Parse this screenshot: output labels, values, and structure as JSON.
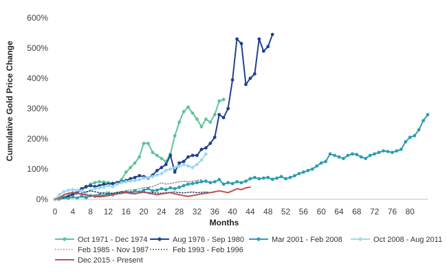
{
  "chart_data": {
    "type": "line",
    "xlabel": "Months",
    "ylabel": "Cumulative Gold Price Change",
    "xlim": [
      0,
      84
    ],
    "ylim": [
      0,
      600
    ],
    "x_ticks": [
      0,
      4,
      8,
      12,
      16,
      20,
      24,
      28,
      32,
      36,
      40,
      44,
      48,
      52,
      56,
      60,
      64,
      68,
      72,
      76,
      80
    ],
    "y_ticks": [
      0,
      100,
      200,
      300,
      400,
      500,
      600
    ],
    "y_tick_labels": [
      "0%",
      "100%",
      "200%",
      "300%",
      "400%",
      "500%",
      "600%"
    ],
    "grid": false,
    "legend_position": "bottom",
    "series": [
      {
        "name": "Oct 1971 - Dec 1974",
        "color": "#5cc49a",
        "style": "solid-markers",
        "x": [
          0,
          1,
          2,
          3,
          4,
          5,
          6,
          7,
          8,
          9,
          10,
          11,
          12,
          13,
          14,
          15,
          16,
          17,
          18,
          19,
          20,
          21,
          22,
          23,
          24,
          25,
          26,
          27,
          28,
          29,
          30,
          31,
          32,
          33,
          34,
          35,
          36,
          37,
          38
        ],
        "y": [
          0,
          3,
          8,
          12,
          15,
          22,
          30,
          40,
          50,
          55,
          58,
          57,
          55,
          53,
          55,
          65,
          90,
          105,
          120,
          140,
          185,
          185,
          155,
          145,
          135,
          125,
          150,
          210,
          255,
          290,
          305,
          285,
          265,
          240,
          265,
          255,
          280,
          325,
          330
        ]
      },
      {
        "name": "Aug 1976 - Sep 1980",
        "color": "#1f3f8f",
        "style": "solid-markers",
        "x": [
          0,
          1,
          2,
          3,
          4,
          5,
          6,
          7,
          8,
          9,
          10,
          11,
          12,
          13,
          14,
          15,
          16,
          17,
          18,
          19,
          20,
          21,
          22,
          23,
          24,
          25,
          26,
          27,
          28,
          29,
          30,
          31,
          32,
          33,
          34,
          35,
          36,
          37,
          38,
          39,
          40,
          41,
          42,
          43,
          44,
          45,
          46,
          47,
          48,
          49
        ],
        "y": [
          0,
          2,
          5,
          10,
          18,
          25,
          35,
          42,
          45,
          42,
          45,
          50,
          50,
          52,
          55,
          58,
          62,
          68,
          72,
          78,
          75,
          70,
          80,
          95,
          105,
          115,
          145,
          90,
          120,
          125,
          140,
          145,
          145,
          165,
          170,
          185,
          205,
          280,
          270,
          300,
          395,
          530,
          515,
          380,
          400,
          415,
          530,
          490,
          505,
          545
        ]
      },
      {
        "name": "Mar 2001 - Feb 2008",
        "color": "#2b9db3",
        "style": "solid-markers",
        "x": [
          0,
          1,
          2,
          3,
          4,
          5,
          6,
          7,
          8,
          9,
          10,
          11,
          12,
          13,
          14,
          15,
          16,
          17,
          18,
          19,
          20,
          21,
          22,
          23,
          24,
          25,
          26,
          27,
          28,
          29,
          30,
          31,
          32,
          33,
          34,
          35,
          36,
          37,
          38,
          39,
          40,
          41,
          42,
          43,
          44,
          45,
          46,
          47,
          48,
          49,
          50,
          51,
          52,
          53,
          54,
          55,
          56,
          57,
          58,
          59,
          60,
          61,
          62,
          63,
          64,
          65,
          66,
          67,
          68,
          69,
          70,
          71,
          72,
          73,
          74,
          75,
          76,
          77,
          78,
          79,
          80,
          81,
          82,
          83,
          84
        ],
        "y": [
          0,
          2,
          5,
          3,
          8,
          4,
          10,
          5,
          12,
          10,
          15,
          12,
          18,
          15,
          20,
          22,
          25,
          22,
          28,
          24,
          30,
          35,
          28,
          30,
          35,
          32,
          38,
          35,
          40,
          45,
          50,
          52,
          55,
          58,
          60,
          55,
          58,
          65,
          50,
          55,
          52,
          58,
          55,
          60,
          68,
          72,
          68,
          70,
          72,
          66,
          70,
          75,
          68,
          72,
          78,
          85,
          90,
          95,
          100,
          110,
          120,
          125,
          150,
          145,
          140,
          135,
          145,
          150,
          148,
          140,
          135,
          145,
          150,
          155,
          160,
          158,
          155,
          160,
          165,
          190,
          205,
          210,
          230,
          260,
          280
        ]
      },
      {
        "name": "Oct 2008 - Aug 2011",
        "color": "#9fd7ee",
        "style": "solid-markers",
        "x": [
          0,
          1,
          2,
          3,
          4,
          5,
          6,
          7,
          8,
          9,
          10,
          11,
          12,
          13,
          14,
          15,
          16,
          17,
          18,
          19,
          20,
          21,
          22,
          23,
          24,
          25,
          26,
          27,
          28,
          29,
          30,
          31,
          32,
          33,
          34
        ],
        "y": [
          0,
          15,
          25,
          30,
          32,
          30,
          28,
          22,
          30,
          35,
          38,
          40,
          45,
          42,
          50,
          55,
          58,
          60,
          62,
          65,
          70,
          72,
          75,
          80,
          85,
          95,
          100,
          105,
          110,
          115,
          110,
          105,
          115,
          130,
          150
        ]
      },
      {
        "name": "Feb 1985 - Nov 1987",
        "color": "#8a8a8a",
        "style": "dotted",
        "x": [
          0,
          1,
          2,
          3,
          4,
          5,
          6,
          7,
          8,
          9,
          10,
          11,
          12,
          13,
          14,
          15,
          16,
          17,
          18,
          19,
          20,
          21,
          22,
          23,
          24,
          25,
          26,
          27,
          28,
          29,
          30,
          31,
          32,
          33
        ],
        "y": [
          0,
          -3,
          5,
          15,
          25,
          20,
          15,
          10,
          12,
          15,
          18,
          22,
          25,
          20,
          22,
          25,
          28,
          30,
          32,
          35,
          38,
          40,
          42,
          48,
          55,
          50,
          52,
          55,
          58,
          60,
          58,
          60,
          62,
          65
        ]
      },
      {
        "name": "Feb 1993 - Feb 1996",
        "color": "#1f3a6b",
        "style": "dotted",
        "x": [
          0,
          1,
          2,
          3,
          4,
          5,
          6,
          7,
          8,
          9,
          10,
          11,
          12,
          13,
          14,
          15,
          16,
          17,
          18,
          19,
          20,
          21,
          22,
          23,
          24,
          25,
          26,
          27,
          28,
          29,
          30,
          31,
          32,
          33,
          34,
          35,
          36
        ],
        "y": [
          0,
          -2,
          5,
          10,
          15,
          18,
          20,
          25,
          28,
          25,
          22,
          20,
          18,
          20,
          22,
          25,
          24,
          22,
          20,
          21,
          22,
          23,
          22,
          21,
          20,
          22,
          23,
          24,
          22,
          21,
          23,
          24,
          22,
          23,
          24,
          22,
          23
        ]
      },
      {
        "name": "Dec 2015 - Present",
        "color": "#c0504d",
        "style": "solid",
        "x": [
          0,
          1,
          2,
          3,
          4,
          5,
          6,
          7,
          8,
          9,
          10,
          11,
          12,
          13,
          14,
          15,
          16,
          17,
          18,
          19,
          20,
          21,
          22,
          23,
          24,
          25,
          26,
          27,
          28,
          29,
          30,
          31,
          32,
          33,
          34,
          35,
          36,
          37,
          38,
          39,
          40,
          41,
          42,
          43,
          44
        ],
        "y": [
          0,
          5,
          15,
          20,
          22,
          20,
          18,
          15,
          12,
          10,
          8,
          10,
          12,
          15,
          18,
          20,
          22,
          20,
          18,
          22,
          25,
          20,
          18,
          15,
          18,
          20,
          22,
          18,
          15,
          12,
          10,
          12,
          15,
          18,
          20,
          22,
          25,
          28,
          25,
          22,
          28,
          35,
          32,
          38,
          40
        ]
      }
    ]
  }
}
